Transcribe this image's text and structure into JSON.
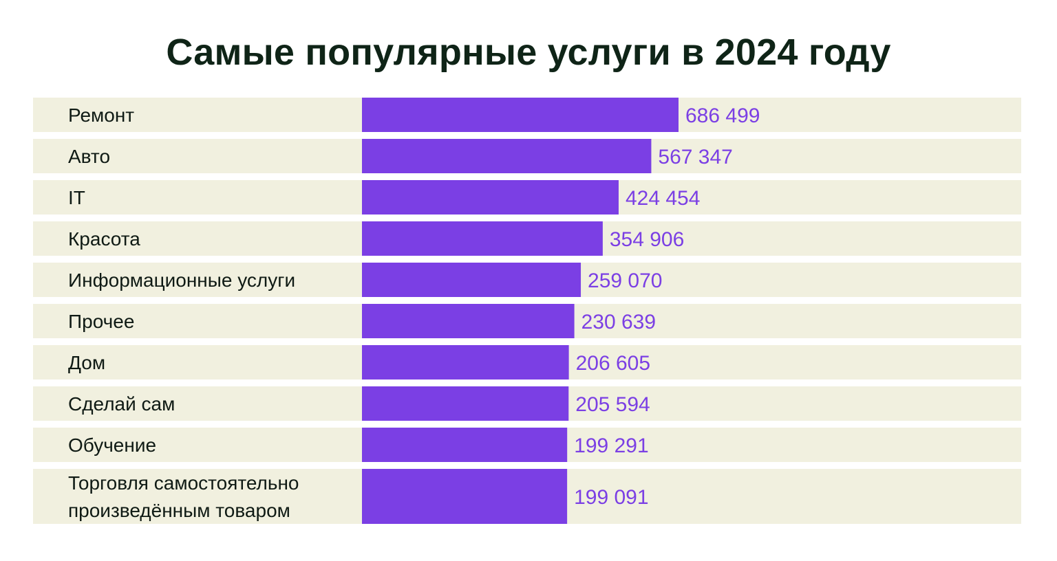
{
  "chart_data": {
    "type": "bar",
    "orientation": "horizontal",
    "title": "Самые популярные услуги в 2024 году",
    "categories": [
      "Ремонт",
      "Авто",
      "IT",
      "Красота",
      "Информационные услуги",
      "Прочее",
      "Дом",
      "Сделай сам",
      "Обучение",
      "Торговля самостоятельно произведённым товаром"
    ],
    "category_lines": [
      [
        "Ремонт"
      ],
      [
        "Авто"
      ],
      [
        "IT"
      ],
      [
        "Красота"
      ],
      [
        "Информационные услуги"
      ],
      [
        "Прочее"
      ],
      [
        "Дом"
      ],
      [
        "Сделай сам"
      ],
      [
        "Обучение"
      ],
      [
        "Торговля самостоятельно",
        "произведённым товаром"
      ]
    ],
    "values": [
      686499,
      567347,
      424454,
      354906,
      259070,
      230639,
      206605,
      205594,
      199291,
      199091
    ],
    "value_labels": [
      "686 499",
      "567 347",
      "424 454",
      "354 906",
      "259 070",
      "230 639",
      "206 605",
      "205 594",
      "199 291",
      "199 091"
    ],
    "colors": {
      "bar": "#7b3fe4",
      "row_background": "#f1f0df",
      "title": "#0f2417",
      "value_text": "#7b3fe4",
      "label_text": "#0f1a14"
    },
    "grid": false,
    "legend": "none"
  }
}
